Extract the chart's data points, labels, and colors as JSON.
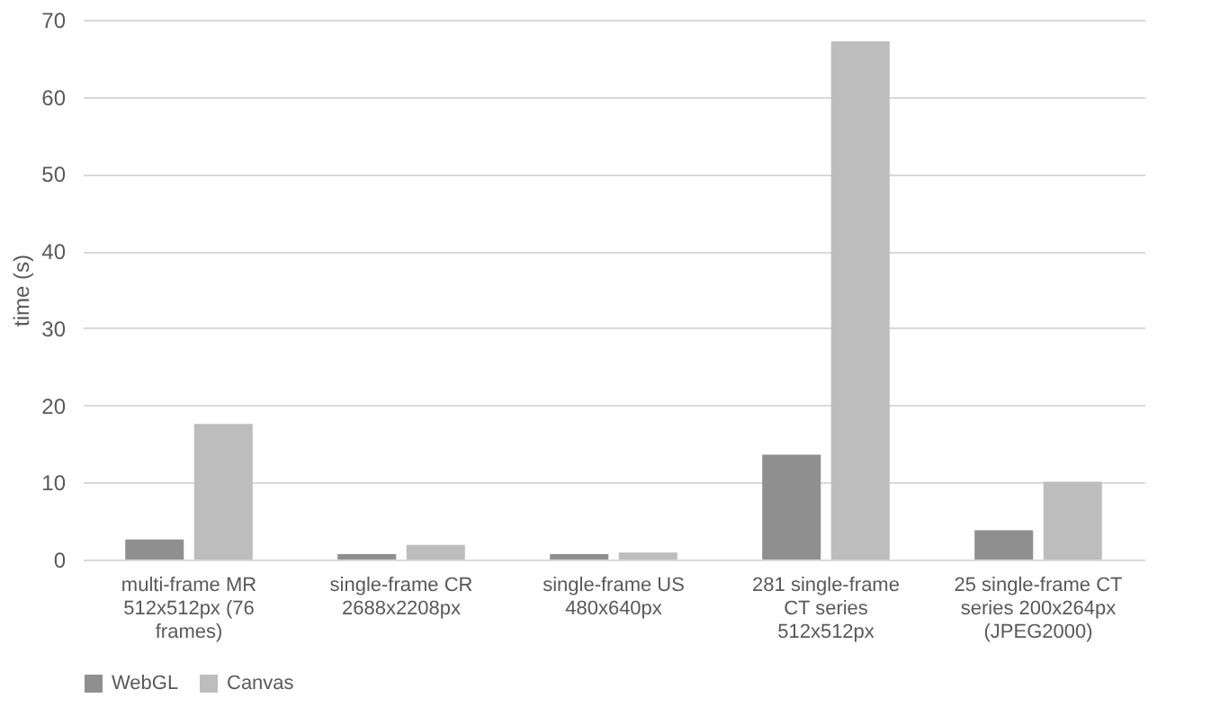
{
  "chart_data": {
    "type": "bar",
    "ylabel": "time (s)",
    "categories": [
      "multi-frame MR\n512x512px (76\nframes)",
      "single-frame CR\n2688x2208px",
      "single-frame US\n480x640px",
      "281 single-frame\nCT series\n512x512px",
      "25 single-frame CT\nseries 200x264px\n(JPEG2000)"
    ],
    "series": [
      {
        "name": "WebGL",
        "color": "#8f8f8f",
        "values": [
          2.6,
          0.7,
          0.7,
          13.6,
          3.8
        ]
      },
      {
        "name": "Canvas",
        "color": "#bdbdbd",
        "values": [
          17.6,
          1.9,
          0.9,
          67.2,
          10.1
        ]
      }
    ],
    "ylim": [
      0,
      70
    ],
    "yticks": [
      0,
      10,
      20,
      30,
      40,
      50,
      60,
      70
    ],
    "grid": "y",
    "legend": "bottom"
  }
}
